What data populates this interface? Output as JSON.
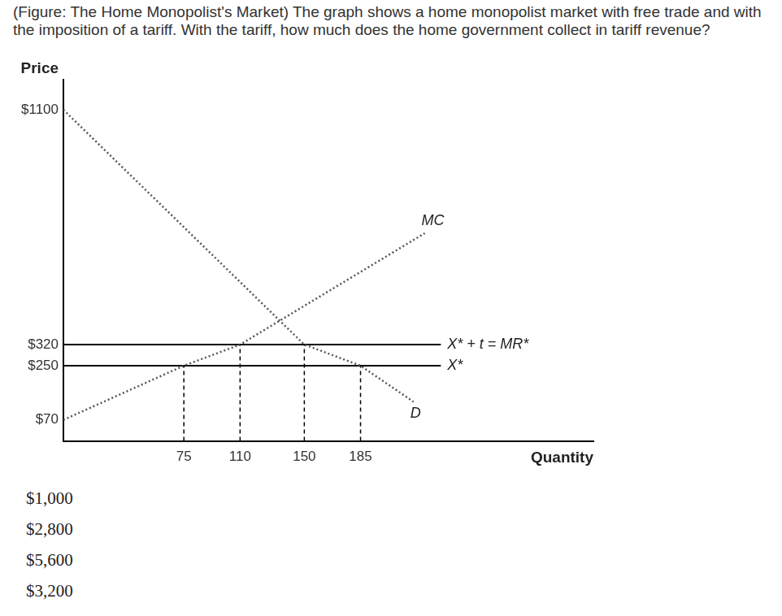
{
  "question": "(Figure: The Home Monopolist's Market) The graph shows a home monopolist market with free trade and with the imposition of a tariff. With the tariff, how much does the home government collect in tariff revenue?",
  "options": [
    "$1,000",
    "$2,800",
    "$5,600",
    "$3,200"
  ],
  "chart_data": {
    "type": "line",
    "x_label": "Quantity",
    "y_label": "Price",
    "xlim": [
      0,
      330
    ],
    "ylim": [
      0,
      1200
    ],
    "xticks": [
      75,
      110,
      150,
      185
    ],
    "yticks": [
      {
        "value": 70,
        "label": "$70"
      },
      {
        "value": 250,
        "label": "$250"
      },
      {
        "value": 320,
        "label": "$320"
      },
      {
        "value": 1100,
        "label": "$1100"
      }
    ],
    "grid": false,
    "series": [
      {
        "name": "MC",
        "color": "#555555",
        "line_style": "dotted",
        "x": [
          0,
          75,
          110,
          225
        ],
        "values": [
          70,
          250,
          320,
          690
        ]
      },
      {
        "name": "D",
        "color": "#555555",
        "line_style": "dotted",
        "x": [
          0,
          150,
          185,
          218
        ],
        "values": [
          1100,
          320,
          250,
          130
        ]
      },
      {
        "name": "X* + t = MR*",
        "color": "#000000",
        "line_style": "solid",
        "x": [
          0,
          235
        ],
        "values": [
          320,
          320
        ]
      },
      {
        "name": "X*",
        "color": "#000000",
        "line_style": "solid",
        "x": [
          0,
          235
        ],
        "values": [
          250,
          250
        ]
      }
    ],
    "drop_lines": [
      [
        75,
        250
      ],
      [
        110,
        320
      ],
      [
        150,
        320
      ],
      [
        185,
        250
      ]
    ]
  }
}
